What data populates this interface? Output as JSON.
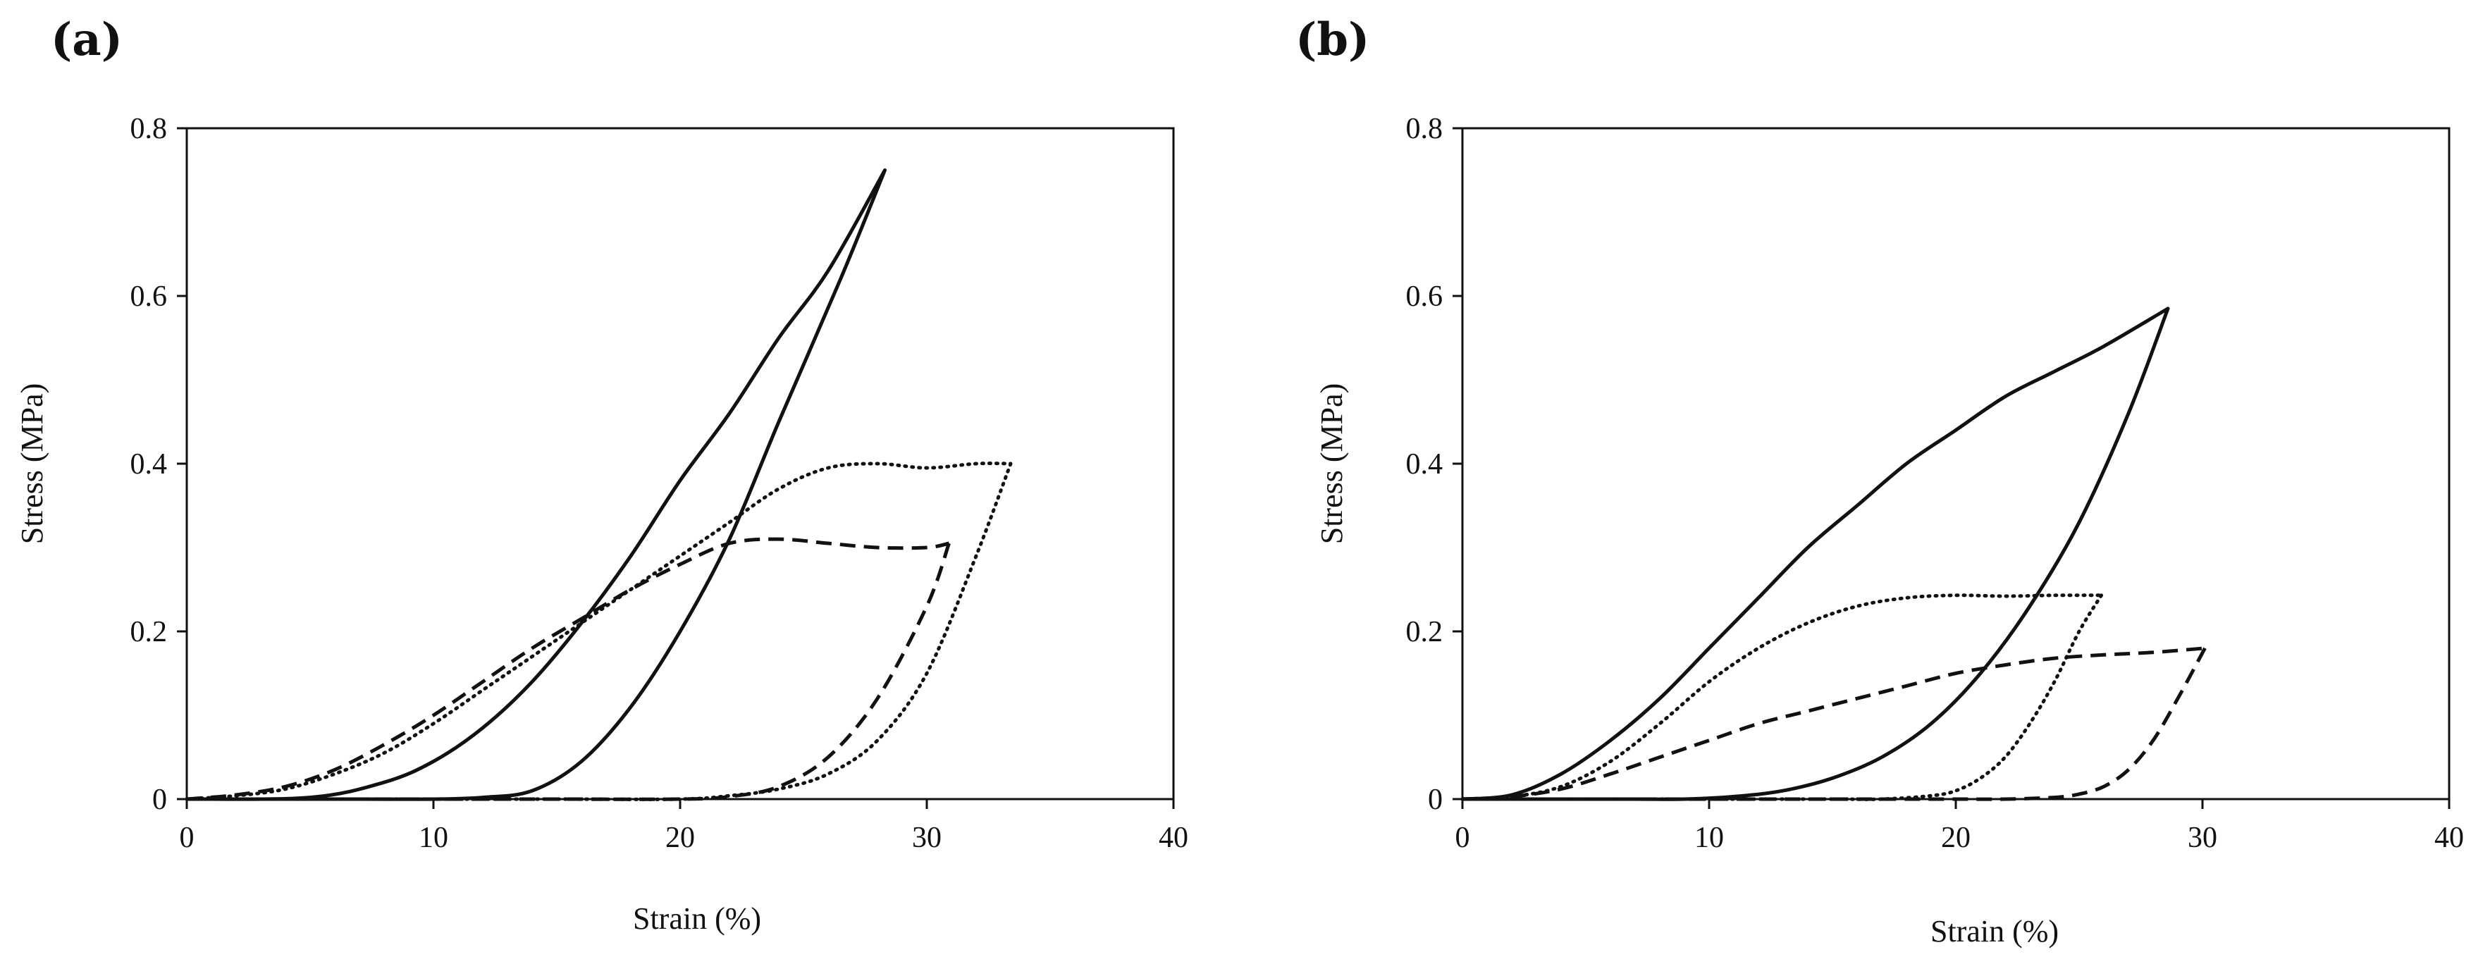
{
  "chart_data": [
    {
      "type": "line",
      "panel_label": "(a)",
      "xlabel": "Strain (%)",
      "ylabel": "Stress (MPa)",
      "xlim": [
        0,
        40
      ],
      "ylim": [
        0,
        0.8
      ],
      "xticks": [
        0,
        10,
        20,
        30,
        40
      ],
      "xtick_labels": [
        "0",
        "10",
        "20",
        "30",
        "40"
      ],
      "yticks": [
        0,
        0.2,
        0.4,
        0.6,
        0.8
      ],
      "ytick_labels": [
        "0",
        "0.2",
        "0.4",
        "0.6",
        "0.8"
      ],
      "series": [
        {
          "name": "solid",
          "style": "solid",
          "x": [
            0,
            5,
            8,
            10,
            12,
            14,
            16,
            18,
            20,
            22,
            24,
            26,
            28.3,
            26.5,
            24,
            22,
            20,
            18,
            16,
            14,
            12,
            10,
            7,
            0
          ],
          "y": [
            0,
            0.002,
            0.02,
            0.045,
            0.085,
            0.14,
            0.21,
            0.29,
            0.38,
            0.46,
            0.55,
            0.63,
            0.75,
            0.62,
            0.45,
            0.31,
            0.2,
            0.11,
            0.045,
            0.01,
            0.002,
            0,
            0,
            0
          ]
        },
        {
          "name": "dotted",
          "style": "dotted",
          "x": [
            0,
            2,
            4,
            6,
            8,
            10,
            12,
            14,
            16,
            18,
            20,
            22,
            24,
            26,
            28,
            30,
            32,
            33.4,
            32,
            30,
            28,
            26,
            24,
            22,
            20,
            15,
            10,
            5,
            0
          ],
          "y": [
            0,
            0.004,
            0.012,
            0.03,
            0.055,
            0.09,
            0.13,
            0.17,
            0.21,
            0.25,
            0.29,
            0.33,
            0.37,
            0.395,
            0.4,
            0.395,
            0.4,
            0.4,
            0.29,
            0.15,
            0.07,
            0.03,
            0.012,
            0.004,
            0,
            0,
            0,
            0,
            0
          ]
        },
        {
          "name": "dashed",
          "style": "dashed",
          "x": [
            0,
            2,
            4,
            6,
            8,
            10,
            12,
            14,
            16,
            18,
            20,
            22,
            24,
            26,
            28,
            30,
            30.9,
            30,
            28,
            26,
            24,
            22,
            20,
            15,
            10,
            5,
            0
          ],
          "y": [
            0,
            0.005,
            0.015,
            0.035,
            0.065,
            0.1,
            0.14,
            0.18,
            0.215,
            0.25,
            0.28,
            0.305,
            0.31,
            0.305,
            0.3,
            0.3,
            0.305,
            0.23,
            0.12,
            0.05,
            0.015,
            0.003,
            0,
            0,
            0,
            0,
            0
          ]
        }
      ]
    },
    {
      "type": "line",
      "panel_label": "(b)",
      "xlabel": "Strain (%)",
      "ylabel": "Stress (MPa)",
      "xlim": [
        0,
        40
      ],
      "ylim": [
        0,
        0.8
      ],
      "xticks": [
        0,
        10,
        20,
        30,
        40
      ],
      "xtick_labels": [
        "0",
        "10",
        "20",
        "30",
        "40"
      ],
      "yticks": [
        0,
        0.2,
        0.4,
        0.6,
        0.8
      ],
      "ytick_labels": [
        "0",
        "0.2",
        "0.4",
        "0.6",
        "0.8"
      ],
      "series": [
        {
          "name": "solid",
          "style": "solid",
          "x": [
            0,
            2,
            4,
            6,
            8,
            10,
            12,
            14,
            16,
            18,
            20,
            22,
            24,
            26,
            28.6,
            27,
            25,
            23,
            21,
            19,
            17,
            15,
            13,
            11,
            9,
            7,
            4,
            0
          ],
          "y": [
            0,
            0.005,
            0.03,
            0.07,
            0.12,
            0.18,
            0.24,
            0.3,
            0.35,
            0.4,
            0.44,
            0.48,
            0.51,
            0.54,
            0.585,
            0.46,
            0.33,
            0.23,
            0.15,
            0.09,
            0.05,
            0.025,
            0.01,
            0.003,
            0,
            0,
            0,
            0
          ]
        },
        {
          "name": "dotted",
          "style": "dotted",
          "x": [
            0,
            2,
            4,
            6,
            8,
            10,
            12,
            14,
            16,
            18,
            20,
            22,
            24,
            25.9,
            25,
            24,
            23,
            22,
            21,
            20,
            19,
            17,
            15,
            10,
            5,
            0
          ],
          "y": [
            0,
            0.003,
            0.015,
            0.045,
            0.09,
            0.14,
            0.18,
            0.21,
            0.23,
            0.24,
            0.243,
            0.242,
            0.243,
            0.243,
            0.2,
            0.14,
            0.09,
            0.05,
            0.025,
            0.01,
            0.004,
            0,
            0,
            0,
            0,
            0
          ]
        },
        {
          "name": "dashed",
          "style": "dashed",
          "x": [
            0,
            2,
            4,
            6,
            8,
            10,
            12,
            14,
            16,
            18,
            20,
            22,
            24,
            26,
            28,
            30.1,
            29,
            28,
            27,
            26,
            25,
            24,
            22,
            20,
            15,
            10,
            5,
            0
          ],
          "y": [
            0,
            0.003,
            0.012,
            0.03,
            0.05,
            0.07,
            0.09,
            0.105,
            0.12,
            0.135,
            0.15,
            0.16,
            0.168,
            0.172,
            0.175,
            0.18,
            0.12,
            0.07,
            0.035,
            0.015,
            0.006,
            0.002,
            0,
            0,
            0,
            0,
            0,
            0
          ]
        }
      ]
    }
  ]
}
